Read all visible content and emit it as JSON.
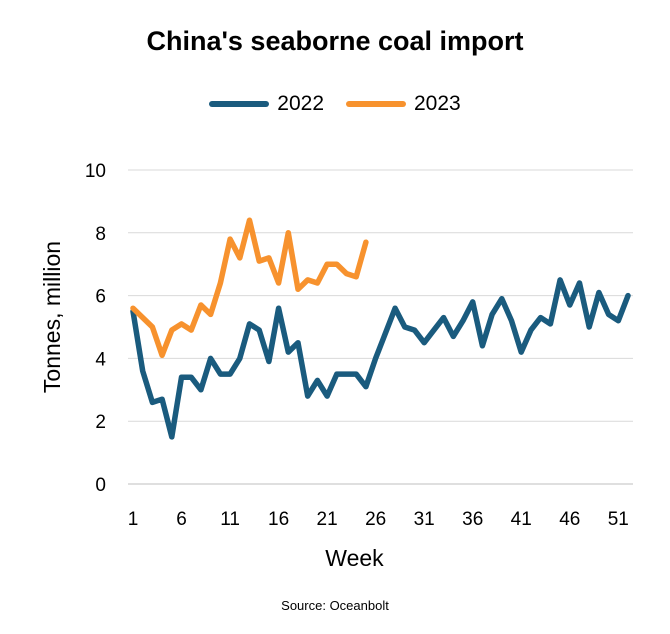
{
  "chart_data": {
    "type": "line",
    "title": "China's seaborne coal import",
    "xlabel": "Week",
    "ylabel": "Tonnes, million",
    "xlim": [
      1,
      52
    ],
    "ylim": [
      0,
      10
    ],
    "x_ticks": [
      1,
      6,
      11,
      16,
      21,
      26,
      31,
      36,
      41,
      46,
      51
    ],
    "y_ticks": [
      0,
      2,
      4,
      6,
      8,
      10
    ],
    "grid": true,
    "legend_position": "top",
    "series": [
      {
        "name": "2022",
        "color": "#1a5b7e",
        "x": [
          1,
          2,
          3,
          4,
          5,
          6,
          7,
          8,
          9,
          10,
          11,
          12,
          13,
          14,
          15,
          16,
          17,
          18,
          19,
          20,
          21,
          22,
          23,
          24,
          25,
          26,
          27,
          28,
          29,
          30,
          31,
          32,
          33,
          34,
          35,
          36,
          37,
          38,
          39,
          40,
          41,
          42,
          43,
          44,
          45,
          46,
          47,
          48,
          49,
          50,
          51,
          52
        ],
        "values": [
          5.5,
          3.6,
          2.6,
          2.7,
          1.5,
          3.4,
          3.4,
          3.0,
          4.0,
          3.5,
          3.5,
          4.0,
          5.1,
          4.9,
          3.9,
          5.6,
          4.2,
          4.5,
          2.8,
          3.3,
          2.8,
          3.5,
          3.5,
          3.5,
          3.1,
          4.0,
          4.8,
          5.6,
          5.0,
          4.9,
          4.5,
          4.9,
          5.3,
          4.7,
          5.2,
          5.8,
          4.4,
          5.4,
          5.9,
          5.2,
          4.2,
          4.9,
          5.3,
          5.1,
          6.5,
          5.7,
          6.4,
          5.0,
          6.1,
          5.4,
          5.2,
          6.0
        ]
      },
      {
        "name": "2023",
        "color": "#f7922e",
        "x": [
          1,
          2,
          3,
          4,
          5,
          6,
          7,
          8,
          9,
          10,
          11,
          12,
          13,
          14,
          15,
          16,
          17,
          18,
          19,
          20,
          21,
          22,
          23,
          24,
          25
        ],
        "values": [
          5.6,
          5.3,
          5.0,
          4.1,
          4.9,
          5.1,
          4.9,
          5.7,
          5.4,
          6.4,
          7.8,
          7.2,
          8.4,
          7.1,
          7.2,
          6.4,
          8.0,
          6.2,
          6.5,
          6.4,
          7.0,
          7.0,
          6.7,
          6.6,
          7.7
        ]
      }
    ]
  },
  "source": "Source: Oceanbolt"
}
